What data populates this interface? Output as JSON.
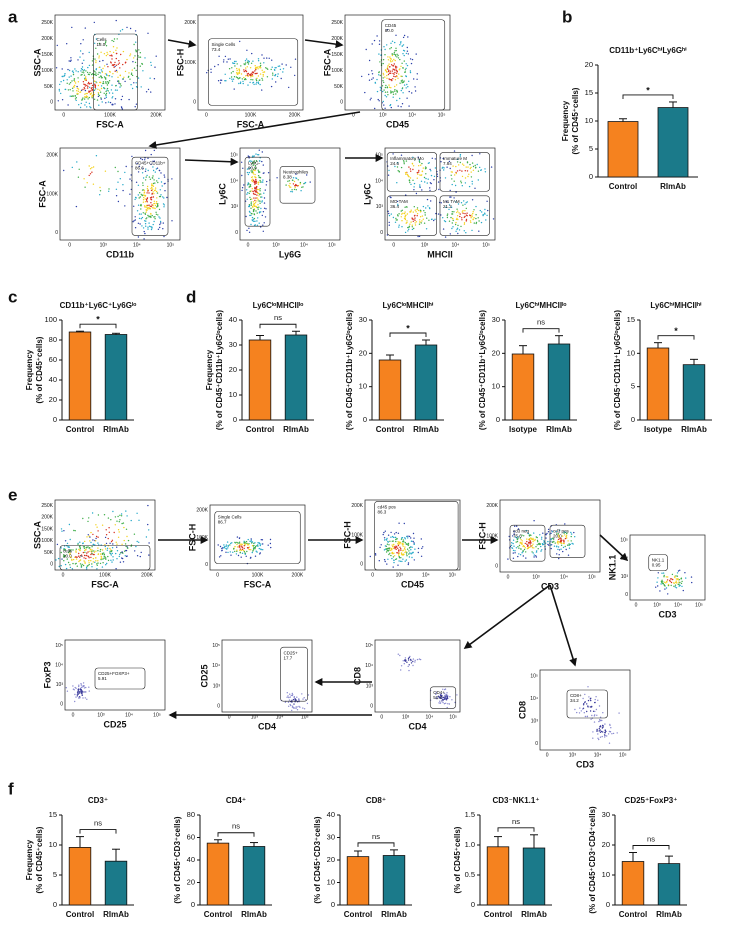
{
  "panel_labels": [
    "a",
    "b",
    "c",
    "d",
    "e",
    "f"
  ],
  "flow_plots": [
    {
      "x_label": "FSC-A",
      "y_label": "SSC-A",
      "x_ticks": [
        "0",
        "100K",
        "200K"
      ],
      "y_ticks": [
        "0",
        "50K",
        "100K",
        "150K",
        "200K",
        "250K"
      ],
      "gates": [
        {
          "name": "Cells",
          "value": "18.0"
        }
      ]
    },
    {
      "x_label": "FSC-A",
      "y_label": "FSC-H",
      "x_ticks": [
        "0",
        "100K",
        "200K"
      ],
      "y_ticks": [
        "0",
        "100K",
        "200K"
      ],
      "gates": [
        {
          "name": "Single Cells",
          "value": "73.4"
        }
      ]
    },
    {
      "x_label": "CD45",
      "y_label": "FSC-A",
      "x_ticks": [
        "0",
        "10³",
        "10⁴",
        "10⁵"
      ],
      "y_ticks": [
        "0",
        "50K",
        "100K",
        "150K",
        "200K",
        "250K"
      ],
      "gates": [
        {
          "name": "CD45",
          "value": "80.0"
        }
      ]
    },
    {
      "x_label": "CD11b",
      "y_label": "FSC-A",
      "x_ticks": [
        "0",
        "10³",
        "10⁴",
        "10⁵"
      ],
      "y_ticks": [
        "0",
        "100K",
        "200K"
      ],
      "gates": [
        {
          "name": "CD45+CD11b+",
          "value": "86.6"
        }
      ]
    },
    {
      "x_label": "Ly6G",
      "y_label": "Ly6C",
      "x_ticks": [
        "0",
        "10³",
        "10⁴",
        "10⁵"
      ],
      "y_ticks": [
        "0",
        "10³",
        "10⁴",
        "10⁵"
      ],
      "gates": [
        {
          "name": "Ly6G-",
          "value": "90.9"
        },
        {
          "name": "Neutrophiles",
          "value": "8.38"
        }
      ]
    },
    {
      "x_label": "MHCII",
      "y_label": "Ly6C",
      "x_ticks": [
        "0",
        "10³",
        "10⁴",
        "10⁵"
      ],
      "y_ticks": [
        "0",
        "10³",
        "10⁴",
        "10⁵"
      ],
      "gates": [
        {
          "name": "Inflammatory Mo",
          "value": "24.6"
        },
        {
          "name": "Immature M",
          "value": "7.84"
        },
        {
          "name": "MO TAM",
          "value": "36.4"
        },
        {
          "name": "M1 TAM",
          "value": "21.2"
        }
      ]
    },
    {
      "x_label": "FSC-A",
      "y_label": "SSC-A",
      "x_ticks": [
        "0",
        "100K",
        "200K"
      ],
      "y_ticks": [
        "0",
        "50K",
        "100K",
        "150K",
        "200K",
        "250K"
      ],
      "gates": [
        {
          "name": "cells",
          "value": "10.0"
        }
      ]
    },
    {
      "x_label": "FSC-A",
      "y_label": "FSC-H",
      "x_ticks": [
        "0",
        "100K",
        "200K"
      ],
      "y_ticks": [
        "0",
        "100K",
        "200K"
      ],
      "gates": [
        {
          "name": "Single Cells",
          "value": "86.7"
        }
      ]
    },
    {
      "x_label": "CD45",
      "y_label": "FSC-H",
      "x_ticks": [
        "0",
        "10³",
        "10⁴",
        "10⁵"
      ],
      "y_ticks": [
        "0",
        "100K",
        "200K"
      ],
      "gates": [
        {
          "name": "cd45 pos",
          "value": "86.3"
        }
      ]
    },
    {
      "x_label": "CD3",
      "y_label": "FSC-H",
      "x_ticks": [
        "0",
        "10³",
        "10⁴",
        "10⁵"
      ],
      "y_ticks": [
        "0",
        "100K",
        "200K"
      ],
      "gates": [
        {
          "name": "cd3 neg",
          "value": "75.6"
        },
        {
          "name": "cd3 pos",
          "value": "20.0"
        }
      ]
    },
    {
      "x_label": "CD3",
      "y_label": "NK1.1",
      "x_ticks": [
        "0",
        "10³",
        "10⁴",
        "10⁵"
      ],
      "y_ticks": [
        "0",
        "10³",
        "10⁴",
        "10⁵"
      ],
      "gates": [
        {
          "name": "NK1.1",
          "value": "0.95"
        }
      ]
    },
    {
      "x_label": "CD25",
      "y_label": "FoxP3",
      "x_ticks": [
        "0",
        "10³",
        "10⁴",
        "10⁵"
      ],
      "y_ticks": [
        "0",
        "10³",
        "10⁴",
        "10⁵"
      ],
      "gates": [
        {
          "name": "CD25+FOXP3+",
          "value": "5.91"
        }
      ]
    },
    {
      "x_label": "CD4",
      "y_label": "CD25",
      "x_ticks": [
        "0",
        "10³",
        "10⁴",
        "10⁵"
      ],
      "y_ticks": [
        "0",
        "10³",
        "10⁴",
        "10⁵"
      ],
      "gates": [
        {
          "name": "CD25+",
          "value": "17.7"
        }
      ]
    },
    {
      "x_label": "CD4",
      "y_label": "CD8",
      "x_ticks": [
        "0",
        "10³",
        "10⁴",
        "10⁵"
      ],
      "y_ticks": [
        "0",
        "10³",
        "10⁴",
        "10⁵"
      ],
      "gates": [
        {
          "name": "CD4+",
          "value": "51.7"
        }
      ]
    },
    {
      "x_label": "CD3",
      "y_label": "CD8",
      "x_ticks": [
        "0",
        "10³",
        "10⁴",
        "10⁵"
      ],
      "y_ticks": [
        "0",
        "10³",
        "10⁴",
        "10⁵"
      ],
      "gates": [
        {
          "name": "CD8+",
          "value": "34.2"
        }
      ]
    }
  ],
  "chart_data": [
    {
      "type": "bar",
      "title": "CD11b⁺Ly6CʰⁱLy6Gʰⁱ",
      "ylabel": [
        "Frequency",
        "(% of CD45⁺cells)"
      ],
      "categories": [
        "Control",
        "RImAb"
      ],
      "values": [
        9.9,
        12.4
      ],
      "errors": [
        0.5,
        1.0
      ],
      "colors": [
        "#f5821f",
        "#1b7a8a"
      ],
      "ylim": [
        0,
        20
      ],
      "yticks": [
        0,
        5,
        10,
        15,
        20
      ],
      "significance": "*"
    },
    {
      "type": "bar",
      "title": "CD11b⁺Ly6C⁺Ly6Gˡᵒ",
      "ylabel": [
        "Frequency",
        "(% of CD45⁺cells)"
      ],
      "categories": [
        "Control",
        "RImAb"
      ],
      "values": [
        88,
        85.5
      ],
      "errors": [
        0.8,
        1.2
      ],
      "colors": [
        "#f5821f",
        "#1b7a8a"
      ],
      "ylim": [
        0,
        100
      ],
      "yticks": [
        0,
        20,
        40,
        60,
        80,
        100
      ],
      "significance": "*"
    },
    {
      "type": "bar",
      "title": "Ly6CˡᵒMHCIIˡᵒ",
      "ylabel": [
        "Frequency",
        "(% of CD45⁺CD11b⁺Ly6Gˡᵒcells)"
      ],
      "categories": [
        "Control",
        "RImAb"
      ],
      "values": [
        32,
        34
      ],
      "errors": [
        1.8,
        1.5
      ],
      "colors": [
        "#f5821f",
        "#1b7a8a"
      ],
      "ylim": [
        0,
        40
      ],
      "yticks": [
        0,
        10,
        20,
        30,
        40
      ],
      "significance": "ns"
    },
    {
      "type": "bar",
      "title": "Ly6CˡᵒMHCIIʰⁱ",
      "ylabel": [
        "(% of CD45⁺CD11b⁺Ly6Gˡᵒcells)"
      ],
      "categories": [
        "Control",
        "RImAb"
      ],
      "values": [
        18,
        22.5
      ],
      "errors": [
        1.5,
        1.5
      ],
      "colors": [
        "#f5821f",
        "#1b7a8a"
      ],
      "ylim": [
        0,
        30
      ],
      "yticks": [
        0,
        10,
        20,
        30
      ],
      "significance": "*"
    },
    {
      "type": "bar",
      "title": "Ly6CʰⁱMHCIIˡᵒ",
      "ylabel": [
        "(% of CD45⁺CD11b⁺Ly6Gˡᵒcells)"
      ],
      "categories": [
        "Isotype",
        "RImAb"
      ],
      "values": [
        19.8,
        22.8
      ],
      "errors": [
        2.5,
        2.5
      ],
      "colors": [
        "#f5821f",
        "#1b7a8a"
      ],
      "ylim": [
        0,
        30
      ],
      "yticks": [
        0,
        10,
        20,
        30
      ],
      "significance": "ns"
    },
    {
      "type": "bar",
      "title": "Ly6CʰⁱMHCIIʰⁱ",
      "ylabel": [
        "(% of CD45⁺CD11b⁺Ly6Gˡᵒcells)"
      ],
      "categories": [
        "Isotype",
        "RImAb"
      ],
      "values": [
        10.8,
        8.3
      ],
      "errors": [
        0.8,
        0.8
      ],
      "colors": [
        "#f5821f",
        "#1b7a8a"
      ],
      "ylim": [
        0,
        15
      ],
      "yticks": [
        0,
        5,
        10,
        15
      ],
      "significance": "*"
    },
    {
      "type": "bar",
      "title": "CD3⁺",
      "ylabel": [
        "Frequency",
        "(% of CD45⁺cells)"
      ],
      "categories": [
        "Control",
        "RImAb"
      ],
      "values": [
        9.6,
        7.3
      ],
      "errors": [
        1.8,
        2.0
      ],
      "colors": [
        "#f5821f",
        "#1b7a8a"
      ],
      "ylim": [
        0,
        15
      ],
      "yticks": [
        0,
        5,
        10,
        15
      ],
      "significance": "ns"
    },
    {
      "type": "bar",
      "title": "CD4⁺",
      "ylabel": [
        "(% of CD45⁺CD3⁺cells)"
      ],
      "categories": [
        "Control",
        "RImAb"
      ],
      "values": [
        55,
        52
      ],
      "errors": [
        3,
        3.5
      ],
      "colors": [
        "#f5821f",
        "#1b7a8a"
      ],
      "ylim": [
        0,
        80
      ],
      "yticks": [
        0,
        20,
        40,
        60,
        80
      ],
      "significance": "ns"
    },
    {
      "type": "bar",
      "title": "CD8⁺",
      "ylabel": [
        "(% of CD45⁺CD3⁺cells)"
      ],
      "categories": [
        "Control",
        "RImAb"
      ],
      "values": [
        21.5,
        22
      ],
      "errors": [
        2.5,
        2.5
      ],
      "colors": [
        "#f5821f",
        "#1b7a8a"
      ],
      "ylim": [
        0,
        40
      ],
      "yticks": [
        0,
        10,
        20,
        30,
        40
      ],
      "significance": "ns"
    },
    {
      "type": "bar",
      "title": "CD3⁻NK1.1⁺",
      "ylabel": [
        "(% of CD45⁺cells)"
      ],
      "categories": [
        "Control",
        "RImAb"
      ],
      "values": [
        0.97,
        0.95
      ],
      "errors": [
        0.17,
        0.22
      ],
      "colors": [
        "#f5821f",
        "#1b7a8a"
      ],
      "ylim": [
        0,
        1.5
      ],
      "yticks": [
        0,
        0.5,
        {
          "value": 1,
          "label": "1.0"
        },
        1.5
      ],
      "significance": "ns"
    },
    {
      "type": "bar",
      "title": "CD25⁺FoxP3⁺",
      "ylabel": [
        "(% of CD45⁺CD3⁺CD4⁺cells)"
      ],
      "categories": [
        "Control",
        "RImAb"
      ],
      "values": [
        14.5,
        13.8
      ],
      "errors": [
        3,
        2.5
      ],
      "colors": [
        "#f5821f",
        "#1b7a8a"
      ],
      "ylim": [
        0,
        30
      ],
      "yticks": [
        0,
        10,
        20,
        30
      ],
      "significance": "ns"
    }
  ]
}
